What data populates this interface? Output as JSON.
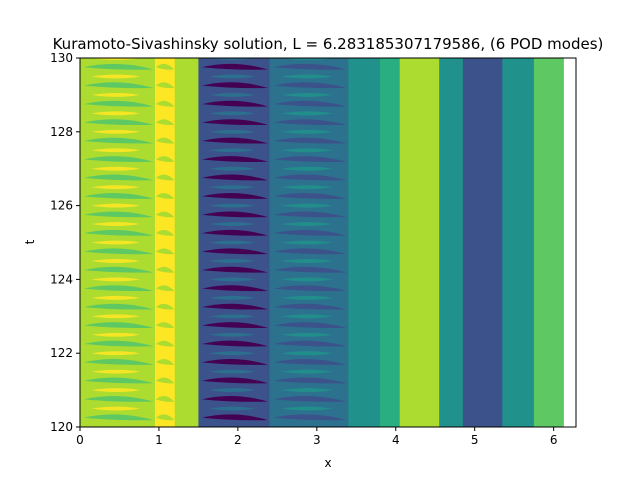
{
  "chart_data": {
    "type": "heatmap",
    "title": "Kuramoto-Sivashinsky solution, L = 6.283185307179586, (6 POD modes)",
    "xlabel": "x",
    "ylabel": "t",
    "xlim": [
      0,
      6.283185307179586
    ],
    "ylim": [
      120,
      130
    ],
    "x_ticks": [
      0,
      1,
      2,
      3,
      4,
      5,
      6
    ],
    "y_ticks": [
      120,
      122,
      124,
      126,
      128,
      130
    ],
    "x_tick_labels": [
      "0",
      "1",
      "2",
      "3",
      "4",
      "5",
      "6"
    ],
    "y_tick_labels": [
      "120",
      "122",
      "124",
      "126",
      "128",
      "130"
    ],
    "colormap": [
      "#440154",
      "#3b528b",
      "#2c728e",
      "#21918c",
      "#28ae80",
      "#5ec962",
      "#addc30",
      "#fde725"
    ],
    "oscillation_period": 0.5,
    "data_x_max": 6.13,
    "grid": false,
    "legend": "none",
    "bands": [
      {
        "x0": 0.0,
        "x1": 0.95,
        "level": 6,
        "oscillating": true
      },
      {
        "x0": 0.95,
        "x1": 1.2,
        "level": 7,
        "oscillating": true
      },
      {
        "x0": 1.2,
        "x1": 1.5,
        "level": 6,
        "oscillating": false
      },
      {
        "x0": 1.5,
        "x1": 2.4,
        "level": 1,
        "oscillating": true
      },
      {
        "x0": 2.4,
        "x1": 3.4,
        "level": 2,
        "oscillating": true
      },
      {
        "x0": 3.4,
        "x1": 3.8,
        "level": 3,
        "oscillating": false
      },
      {
        "x0": 3.8,
        "x1": 4.05,
        "level": 4,
        "oscillating": false
      },
      {
        "x0": 4.05,
        "x1": 4.55,
        "level": 6,
        "oscillating": false
      },
      {
        "x0": 4.55,
        "x1": 4.85,
        "level": 3,
        "oscillating": false
      },
      {
        "x0": 4.85,
        "x1": 5.35,
        "level": 1,
        "oscillating": false
      },
      {
        "x0": 5.35,
        "x1": 5.75,
        "level": 3,
        "oscillating": false
      },
      {
        "x0": 5.75,
        "x1": 6.13,
        "level": 5,
        "oscillating": false
      }
    ]
  }
}
